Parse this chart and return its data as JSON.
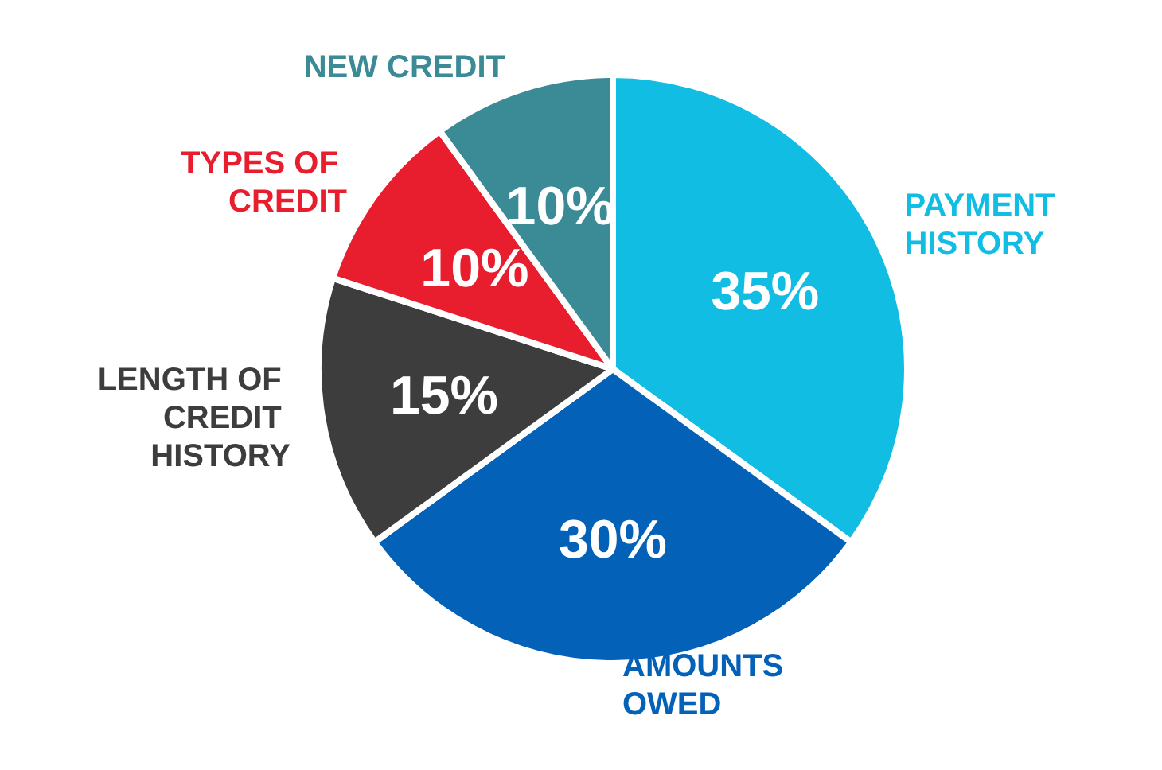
{
  "chart_data": {
    "type": "pie",
    "categories": [
      "PAYMENT HISTORY",
      "AMOUNTS OWED",
      "LENGTH OF CREDIT HISTORY",
      "TYPES OF CREDIT",
      "NEW CREDIT"
    ],
    "values": [
      35,
      30,
      15,
      10,
      10
    ],
    "colors": [
      "#12bde3",
      "#0461b8",
      "#3d3d3d",
      "#e81e2f",
      "#3a8b95"
    ],
    "value_labels": [
      "35%",
      "30%",
      "15%",
      "10%",
      "10%"
    ],
    "legend": false
  }
}
